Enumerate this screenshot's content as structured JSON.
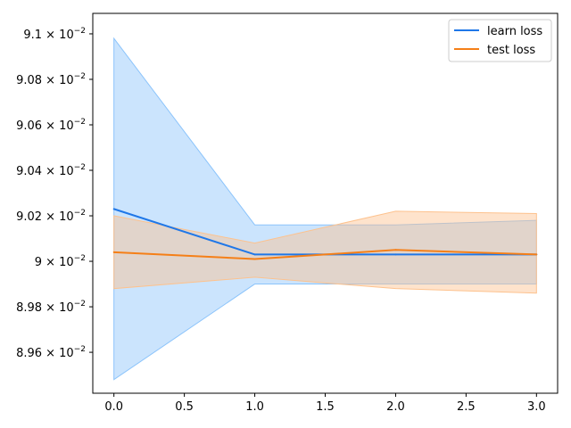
{
  "chart_data": {
    "type": "line",
    "x": [
      0,
      1,
      2,
      3
    ],
    "xlim": [
      -0.15,
      3.15
    ],
    "ylim": [
      0.08942,
      0.09109
    ],
    "xticks": [
      0.0,
      0.5,
      1.0,
      1.5,
      2.0,
      2.5,
      3.0
    ],
    "xtick_labels": [
      "0.0",
      "0.5",
      "1.0",
      "1.5",
      "2.0",
      "2.5",
      "3.0"
    ],
    "yticks": [
      0.0896,
      0.0898,
      0.09,
      0.0902,
      0.0904,
      0.0906,
      0.0908,
      0.091
    ],
    "ytick_mantissas": [
      "8.96",
      "8.98",
      "9",
      "9.02",
      "9.04",
      "9.06",
      "9.08",
      "9.1"
    ],
    "ytick_base": "10",
    "ytick_exponent": "−2",
    "grid": false,
    "legend_position": "top-right",
    "series": [
      {
        "name": "learn loss",
        "color": "#1f77e8",
        "band_color": "#8cc4fb",
        "values": [
          0.09023,
          0.09003,
          0.09003,
          0.09003
        ],
        "lower": [
          0.08948,
          0.0899,
          0.0899,
          0.0899
        ],
        "upper": [
          0.09098,
          0.09016,
          0.09016,
          0.09018
        ]
      },
      {
        "name": "test loss",
        "color": "#f57f17",
        "band_color": "#fdc28e",
        "values": [
          0.09004,
          0.09001,
          0.09005,
          0.09003
        ],
        "lower": [
          0.08988,
          0.08993,
          0.08988,
          0.08986
        ],
        "upper": [
          0.0902,
          0.09008,
          0.09022,
          0.09021
        ]
      }
    ]
  }
}
